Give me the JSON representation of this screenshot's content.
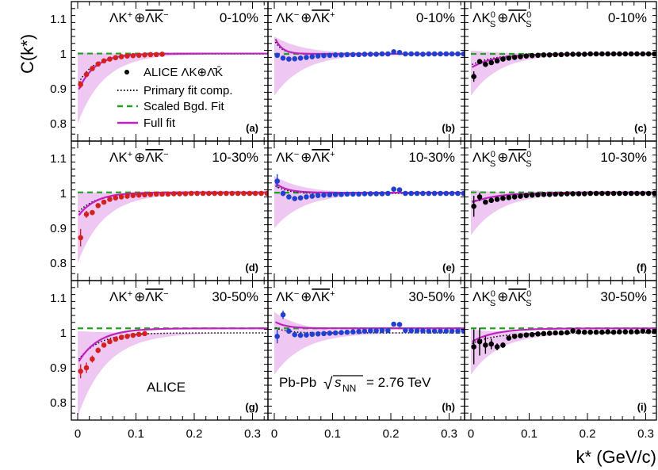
{
  "chart_data": {
    "type": "scatter",
    "layout": "3x3 grid",
    "ylabel": "C(k*)",
    "xlabel": "k* (GeV/c)",
    "xlim": [
      0,
      0.33
    ],
    "ylim": [
      0.75,
      1.15
    ],
    "xticks": [
      0,
      0.1,
      0.2,
      0.3
    ],
    "xtick_labels": [
      "0",
      "0.1",
      "0.2",
      "0.3"
    ],
    "yticks": [
      0.8,
      0.9,
      1.0,
      1.1
    ],
    "ytick_labels": [
      "0.8",
      "0.9",
      "1",
      "1.1"
    ],
    "legend": {
      "placement": "inside panel (a)",
      "entries": [
        {
          "key": "data",
          "label": "ALICE ΛK⊕Λ̄K̄"
        },
        {
          "key": "primary",
          "label": "Primary fit comp."
        },
        {
          "key": "bgd",
          "label": "Scaled Bgd. Fit"
        },
        {
          "key": "full",
          "label": "Full fit"
        }
      ]
    },
    "annotations": {
      "experiment": "ALICE",
      "system_prefix": "Pb-Pb",
      "sqrt_symbol": "√",
      "energy_var": "s",
      "energy_sub": "NN",
      "energy_value": "= 2.76 TeV"
    },
    "colors": {
      "red": "#d42020",
      "blue": "#2040d0",
      "black": "#000000",
      "band": "#eec8f2",
      "full_fit": "#c020c0",
      "bgd": "#20a020"
    },
    "panels": [
      {
        "label": "(a)",
        "title_main": "ΛK",
        "title_sup": "+",
        "title_oplus": "⊕",
        "title_bar": "ΛK",
        "title_sup2": "−",
        "title_sub1": "",
        "title_sub2": "",
        "centrality": "0-10%",
        "color": "red",
        "bgd": 1.001,
        "x": [
          0.005,
          0.015,
          0.025,
          0.035,
          0.045,
          0.055,
          0.065,
          0.075,
          0.085,
          0.095,
          0.105,
          0.115,
          0.125,
          0.135,
          0.145
        ],
        "y": [
          0.912,
          0.941,
          0.958,
          0.971,
          0.98,
          0.985,
          0.989,
          0.992,
          0.994,
          0.995,
          0.996,
          0.997,
          0.998,
          0.998,
          0.999
        ],
        "err": [
          0.01,
          0.006,
          0.005,
          0.004,
          0.004,
          0.003,
          0.003,
          0.003,
          0.003,
          0.003,
          0.003,
          0.003,
          0.003,
          0.003,
          0.003
        ],
        "fit_A": 0.11,
        "fit_k": 0.028,
        "band_A": 0.2,
        "band_k": 0.045,
        "band_up": 0.005
      },
      {
        "label": "(b)",
        "title_main": "ΛK",
        "title_sup": "−",
        "title_oplus": "⊕",
        "title_bar": "ΛK",
        "title_sup2": "+",
        "title_sub1": "",
        "title_sub2": "",
        "centrality": "0-10%",
        "color": "blue",
        "bgd": 1.0,
        "x": [
          0.005,
          0.015,
          0.025,
          0.035,
          0.045,
          0.055,
          0.065,
          0.075,
          0.085,
          0.095,
          0.105,
          0.115,
          0.125,
          0.135,
          0.145,
          0.155,
          0.165,
          0.175,
          0.185,
          0.195,
          0.205,
          0.215,
          0.225,
          0.235,
          0.245,
          0.255,
          0.265,
          0.275,
          0.285,
          0.295,
          0.305,
          0.315,
          0.325
        ],
        "y": [
          0.996,
          0.988,
          0.985,
          0.986,
          0.988,
          0.99,
          0.992,
          0.994,
          0.995,
          0.996,
          0.997,
          0.997,
          0.998,
          0.998,
          0.998,
          0.999,
          0.999,
          0.999,
          1.0,
          1.0,
          1.006,
          1.004,
          1.0,
          1.0,
          1.0,
          0.999,
          1.0,
          1.0,
          1.0,
          1.0,
          1.0,
          1.0,
          1.0
        ],
        "err": [
          0.006,
          0.004,
          0.003,
          0.003,
          0.003,
          0.003,
          0.003,
          0.003,
          0.003,
          0.003,
          0.003,
          0.003,
          0.003,
          0.003,
          0.003,
          0.003,
          0.003,
          0.003,
          0.003,
          0.003,
          0.003,
          0.003,
          0.003,
          0.003,
          0.003,
          0.003,
          0.003,
          0.003,
          0.003,
          0.003,
          0.003,
          0.003,
          0.003
        ],
        "fit_A": -0.05,
        "fit_k": 0.012,
        "band_A": 0.12,
        "band_k": 0.05,
        "band_up": 0.05
      },
      {
        "label": "(c)",
        "title_main": "ΛK",
        "title_sup": "0",
        "title_oplus": "⊕",
        "title_bar": "ΛK",
        "title_sup2": "0",
        "title_sub1": "S",
        "title_sub2": "S",
        "centrality": "0-10%",
        "color": "black",
        "bgd": 1.0,
        "x": [
          0.005,
          0.015,
          0.025,
          0.035,
          0.045,
          0.055,
          0.065,
          0.075,
          0.085,
          0.095,
          0.105,
          0.115,
          0.125,
          0.135,
          0.145,
          0.155,
          0.165,
          0.175,
          0.185,
          0.195,
          0.205,
          0.215,
          0.225,
          0.235,
          0.245,
          0.255,
          0.265,
          0.275,
          0.285,
          0.295,
          0.305,
          0.315,
          0.325
        ],
        "y": [
          0.935,
          0.978,
          0.97,
          0.975,
          0.98,
          0.985,
          0.988,
          0.99,
          0.992,
          0.994,
          0.995,
          0.996,
          0.997,
          0.997,
          0.998,
          0.998,
          0.999,
          0.999,
          0.999,
          0.999,
          1.0,
          1.0,
          1.0,
          1.0,
          1.0,
          1.0,
          1.0,
          1.0,
          1.0,
          1.0,
          1.0,
          1.0,
          1.0
        ],
        "err": [
          0.015,
          0.006,
          0.005,
          0.004,
          0.004,
          0.003,
          0.003,
          0.003,
          0.003,
          0.003,
          0.003,
          0.003,
          0.003,
          0.003,
          0.003,
          0.003,
          0.003,
          0.003,
          0.003,
          0.003,
          0.003,
          0.003,
          0.003,
          0.003,
          0.003,
          0.003,
          0.003,
          0.003,
          0.003,
          0.003,
          0.003,
          0.003,
          0.003
        ],
        "fit_A": 0.04,
        "fit_k": 0.04,
        "band_A": 0.12,
        "band_k": 0.05,
        "band_up": 0.01
      },
      {
        "label": "(d)",
        "title_main": "ΛK",
        "title_sup": "+",
        "title_oplus": "⊕",
        "title_bar": "ΛK",
        "title_sup2": "−",
        "title_sub1": "",
        "title_sub2": "",
        "centrality": "10-30%",
        "color": "red",
        "bgd": 1.003,
        "x": [
          0.005,
          0.015,
          0.025,
          0.035,
          0.045,
          0.055,
          0.065,
          0.075,
          0.085,
          0.095,
          0.105,
          0.115,
          0.125,
          0.135,
          0.145,
          0.155,
          0.165,
          0.175,
          0.185,
          0.195,
          0.205,
          0.215,
          0.225,
          0.235,
          0.245,
          0.255,
          0.265,
          0.275,
          0.285,
          0.295,
          0.305,
          0.315,
          0.325
        ],
        "y": [
          0.873,
          0.94,
          0.945,
          0.965,
          0.975,
          0.983,
          0.987,
          0.99,
          0.992,
          0.994,
          0.995,
          0.996,
          0.997,
          0.998,
          0.998,
          0.998,
          0.999,
          0.999,
          0.999,
          1.0,
          1.0,
          1.0,
          1.0,
          1.0,
          1.0,
          1.0,
          1.0,
          1.0,
          1.0,
          1.0,
          1.0,
          1.0,
          1.0
        ],
        "err": [
          0.025,
          0.01,
          0.007,
          0.005,
          0.004,
          0.004,
          0.003,
          0.003,
          0.003,
          0.003,
          0.003,
          0.003,
          0.003,
          0.003,
          0.003,
          0.003,
          0.003,
          0.003,
          0.003,
          0.003,
          0.003,
          0.003,
          0.003,
          0.003,
          0.003,
          0.003,
          0.003,
          0.003,
          0.003,
          0.003,
          0.003,
          0.003,
          0.003
        ],
        "fit_A": 0.07,
        "fit_k": 0.03,
        "band_A": 0.2,
        "band_k": 0.045,
        "band_up": 0.005
      },
      {
        "label": "(e)",
        "title_main": "ΛK",
        "title_sup": "−",
        "title_oplus": "⊕",
        "title_bar": "ΛK",
        "title_sup2": "+",
        "title_sub1": "",
        "title_sub2": "",
        "centrality": "10-30%",
        "color": "blue",
        "bgd": 1.002,
        "x": [
          0.005,
          0.015,
          0.025,
          0.035,
          0.045,
          0.055,
          0.065,
          0.075,
          0.085,
          0.095,
          0.105,
          0.115,
          0.125,
          0.135,
          0.145,
          0.155,
          0.165,
          0.175,
          0.185,
          0.195,
          0.205,
          0.215,
          0.225,
          0.235,
          0.245,
          0.255,
          0.265,
          0.275,
          0.285,
          0.295,
          0.305,
          0.315,
          0.325
        ],
        "y": [
          1.035,
          1.0,
          0.99,
          0.985,
          0.987,
          0.99,
          0.992,
          0.994,
          0.995,
          0.996,
          0.997,
          0.997,
          0.998,
          0.998,
          0.998,
          0.999,
          0.999,
          0.999,
          0.999,
          1.0,
          1.012,
          1.01,
          1.0,
          1.0,
          1.0,
          1.0,
          1.0,
          1.0,
          1.0,
          1.0,
          1.0,
          1.0,
          1.0
        ],
        "err": [
          0.02,
          0.008,
          0.005,
          0.004,
          0.004,
          0.003,
          0.003,
          0.003,
          0.003,
          0.003,
          0.003,
          0.003,
          0.003,
          0.003,
          0.003,
          0.003,
          0.003,
          0.003,
          0.003,
          0.003,
          0.003,
          0.003,
          0.003,
          0.003,
          0.003,
          0.003,
          0.003,
          0.003,
          0.003,
          0.003,
          0.003,
          0.003,
          0.003
        ],
        "fit_A": -0.03,
        "fit_k": 0.02,
        "band_A": 0.1,
        "band_k": 0.05,
        "band_up": 0.05
      },
      {
        "label": "(f)",
        "title_main": "ΛK",
        "title_sup": "0",
        "title_oplus": "⊕",
        "title_bar": "ΛK",
        "title_sup2": "0",
        "title_sub1": "S",
        "title_sub2": "S",
        "centrality": "10-30%",
        "color": "black",
        "bgd": 1.003,
        "x": [
          0.005,
          0.015,
          0.025,
          0.035,
          0.045,
          0.055,
          0.065,
          0.075,
          0.085,
          0.095,
          0.105,
          0.115,
          0.125,
          0.135,
          0.145,
          0.155,
          0.165,
          0.175,
          0.185,
          0.195,
          0.205,
          0.215,
          0.225,
          0.235,
          0.245,
          0.255,
          0.265,
          0.275,
          0.285,
          0.295,
          0.305,
          0.315,
          0.325
        ],
        "y": [
          0.963,
          0.99,
          0.975,
          0.98,
          0.983,
          0.986,
          0.988,
          0.99,
          0.992,
          0.994,
          0.995,
          0.996,
          0.997,
          0.997,
          0.998,
          0.998,
          0.999,
          0.999,
          0.999,
          0.999,
          1.0,
          1.0,
          1.0,
          1.0,
          1.0,
          1.0,
          1.0,
          1.0,
          1.0,
          1.0,
          1.0,
          1.0,
          0.999
        ],
        "err": [
          0.03,
          0.012,
          0.006,
          0.005,
          0.004,
          0.004,
          0.003,
          0.003,
          0.003,
          0.003,
          0.003,
          0.003,
          0.003,
          0.003,
          0.003,
          0.003,
          0.003,
          0.003,
          0.003,
          0.003,
          0.003,
          0.003,
          0.003,
          0.003,
          0.003,
          0.003,
          0.003,
          0.003,
          0.003,
          0.003,
          0.003,
          0.003,
          0.003
        ],
        "fit_A": 0.03,
        "fit_k": 0.045,
        "band_A": 0.12,
        "band_k": 0.05,
        "band_up": 0.01
      },
      {
        "label": "(g)",
        "title_main": "ΛK",
        "title_sup": "+",
        "title_oplus": "⊕",
        "title_bar": "ΛK",
        "title_sup2": "−",
        "title_sub1": "",
        "title_sub2": "",
        "centrality": "30-50%",
        "color": "red",
        "bgd": 1.013,
        "x": [
          0.005,
          0.015,
          0.025,
          0.035,
          0.045,
          0.055,
          0.065,
          0.075,
          0.085,
          0.095,
          0.105,
          0.115
        ],
        "y": [
          0.89,
          0.9,
          0.925,
          0.95,
          0.965,
          0.975,
          0.982,
          0.987,
          0.99,
          0.993,
          0.996,
          0.998
        ],
        "err": [
          0.02,
          0.015,
          0.01,
          0.008,
          0.006,
          0.005,
          0.004,
          0.004,
          0.004,
          0.003,
          0.003,
          0.003
        ],
        "fit_A": 0.1,
        "fit_k": 0.035,
        "band_A": 0.24,
        "band_k": 0.05,
        "band_up": 0.005
      },
      {
        "label": "(h)",
        "title_main": "ΛK",
        "title_sup": "−",
        "title_oplus": "⊕",
        "title_bar": "ΛK",
        "title_sup2": "+",
        "title_sub1": "",
        "title_sub2": "",
        "centrality": "30-50%",
        "color": "blue",
        "bgd": 1.013,
        "x": [
          0.005,
          0.015,
          0.025,
          0.035,
          0.045,
          0.055,
          0.065,
          0.075,
          0.085,
          0.095,
          0.105,
          0.115,
          0.125,
          0.135,
          0.145,
          0.155,
          0.165,
          0.175,
          0.185,
          0.195,
          0.205,
          0.215,
          0.225,
          0.235,
          0.245,
          0.255,
          0.265,
          0.275,
          0.285,
          0.295,
          0.305,
          0.315,
          0.325
        ],
        "y": [
          0.99,
          1.052,
          1.005,
          0.995,
          0.993,
          0.994,
          0.996,
          0.997,
          0.998,
          0.999,
          1.0,
          1.001,
          1.002,
          1.003,
          1.004,
          1.005,
          1.006,
          1.006,
          1.007,
          1.007,
          1.025,
          1.024,
          1.007,
          1.006,
          1.006,
          1.006,
          1.005,
          1.005,
          1.005,
          1.005,
          1.005,
          1.005,
          1.005
        ],
        "err": [
          0.02,
          0.012,
          0.007,
          0.005,
          0.004,
          0.004,
          0.003,
          0.003,
          0.003,
          0.003,
          0.003,
          0.003,
          0.003,
          0.003,
          0.003,
          0.003,
          0.003,
          0.003,
          0.003,
          0.003,
          0.003,
          0.003,
          0.003,
          0.003,
          0.003,
          0.003,
          0.003,
          0.003,
          0.003,
          0.003,
          0.003,
          0.003,
          0.003
        ],
        "fit_A": -0.02,
        "fit_k": 0.02,
        "band_A": 0.12,
        "band_k": 0.05,
        "band_up": 0.06
      },
      {
        "label": "(i)",
        "title_main": "ΛK",
        "title_sup": "0",
        "title_oplus": "⊕",
        "title_bar": "ΛK",
        "title_sup2": "0",
        "title_sub1": "S",
        "title_sub2": "S",
        "centrality": "30-50%",
        "color": "black",
        "bgd": 1.013,
        "x": [
          0.005,
          0.015,
          0.025,
          0.035,
          0.045,
          0.055,
          0.065,
          0.075,
          0.085,
          0.095,
          0.105,
          0.115,
          0.125,
          0.135,
          0.145,
          0.155,
          0.165,
          0.175,
          0.185,
          0.195,
          0.205,
          0.215,
          0.225,
          0.235,
          0.245,
          0.255,
          0.265,
          0.275,
          0.285,
          0.295,
          0.305,
          0.315,
          0.325
        ],
        "y": [
          0.96,
          0.975,
          0.965,
          0.968,
          0.96,
          0.965,
          0.985,
          0.99,
          0.992,
          0.994,
          0.995,
          0.997,
          0.998,
          0.999,
          1.0,
          1.0,
          1.001,
          1.006,
          1.003,
          1.002,
          1.002,
          1.002,
          1.002,
          1.003,
          1.002,
          1.003,
          1.003,
          1.003,
          1.003,
          1.005,
          1.004,
          1.004,
          1.003
        ],
        "err": [
          0.05,
          0.04,
          0.025,
          0.015,
          0.01,
          0.008,
          0.006,
          0.005,
          0.004,
          0.004,
          0.004,
          0.003,
          0.003,
          0.003,
          0.003,
          0.003,
          0.003,
          0.003,
          0.003,
          0.003,
          0.003,
          0.003,
          0.003,
          0.003,
          0.003,
          0.003,
          0.003,
          0.003,
          0.003,
          0.003,
          0.003,
          0.003,
          0.003
        ],
        "fit_A": 0.04,
        "fit_k": 0.04,
        "band_A": 0.12,
        "band_k": 0.05,
        "band_up": 0.01
      }
    ]
  }
}
